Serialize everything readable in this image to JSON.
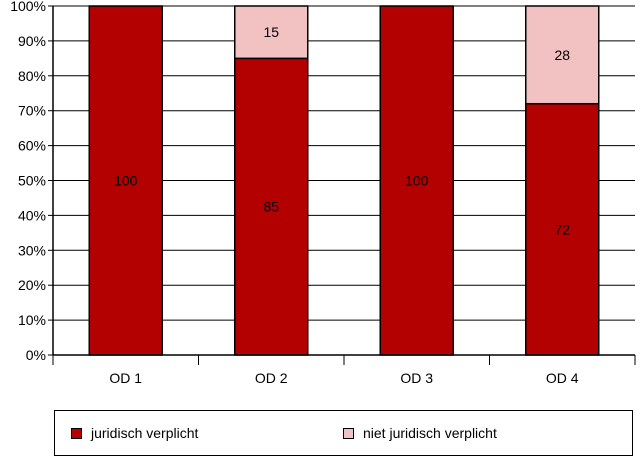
{
  "chart_data": {
    "type": "bar",
    "stacked": true,
    "categories": [
      "OD 1",
      "OD 2",
      "OD 3",
      "OD 4"
    ],
    "series": [
      {
        "name": "juridisch verplicht",
        "values": [
          100,
          85,
          100,
          72
        ],
        "color": "#b30000"
      },
      {
        "name": "niet juridisch verplicht",
        "values": [
          0,
          15,
          0,
          28
        ],
        "color": "#f2c2c2"
      }
    ],
    "data_labels": [
      [
        "100",
        "85",
        "100",
        "72"
      ],
      [
        "",
        "15",
        "",
        "28"
      ]
    ],
    "yticks": [
      "0%",
      "10%",
      "20%",
      "30%",
      "40%",
      "50%",
      "60%",
      "70%",
      "80%",
      "90%",
      "100%"
    ],
    "ylim": [
      0,
      100
    ],
    "grid": true,
    "legend_position": "bottom"
  }
}
